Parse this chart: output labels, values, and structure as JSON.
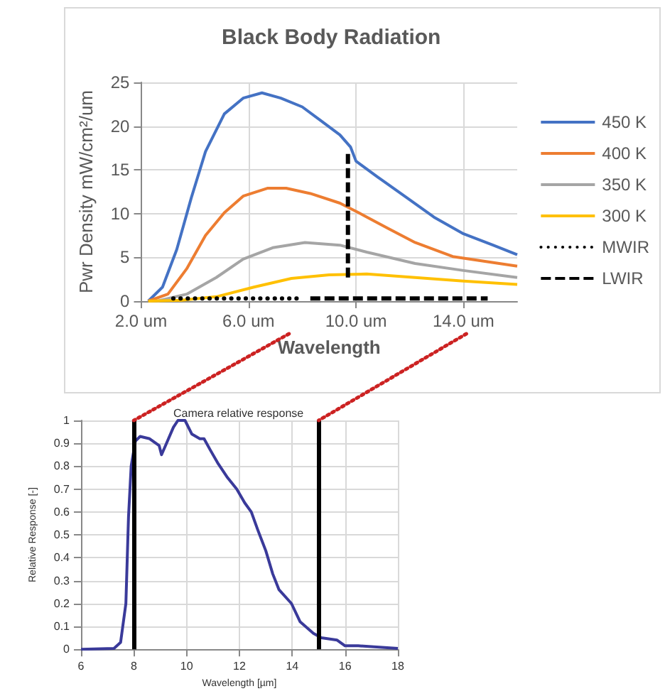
{
  "chart_data": [
    {
      "type": "line",
      "title": "Black Body Radiation",
      "xlabel": "Wavelength",
      "ylabel": "Pwr Density mW/cm²/um",
      "xlim": [
        2,
        16
      ],
      "xticks": [
        {
          "value": 2,
          "label": "2.0 um"
        },
        {
          "value": 6,
          "label": "6.0 um"
        },
        {
          "value": 10,
          "label": "10.0 um"
        },
        {
          "value": 14,
          "label": "14.0 um"
        }
      ],
      "ylim": [
        0,
        25
      ],
      "yticks": [
        0,
        5,
        10,
        15,
        20,
        25
      ],
      "grid": true,
      "legend": "right",
      "marker": "none",
      "series": [
        {
          "name": "450 K",
          "color": "#4472c4",
          "x": [
            2.27,
            2.8,
            3.33,
            3.87,
            4.4,
            5.1,
            5.8,
            6.5,
            7.2,
            8,
            8.7,
            9.4,
            9.8,
            10,
            10.8,
            11.9,
            12.9,
            14,
            15.1,
            16
          ],
          "values": [
            0,
            1.6,
            5.9,
            11.8,
            17.1,
            21.4,
            23.2,
            23.8,
            23.2,
            22.2,
            20.6,
            19,
            17.6,
            16,
            14.2,
            11.8,
            9.6,
            7.7,
            6.4,
            5.3
          ]
        },
        {
          "name": "400 K",
          "color": "#ed7d31",
          "x": [
            2.27,
            3,
            3.7,
            4.4,
            5.1,
            5.8,
            6.7,
            7.4,
            8.3,
            9.4,
            10.1,
            11.2,
            12.2,
            13.6,
            16
          ],
          "values": [
            0,
            0.8,
            3.7,
            7.5,
            10.1,
            12,
            12.9,
            12.9,
            12.3,
            11.2,
            10.1,
            8.3,
            6.7,
            5.1,
            4
          ]
        },
        {
          "name": "350 K",
          "color": "#a5a5a5",
          "x": [
            2.6,
            3.7,
            4.8,
            5.8,
            6.9,
            8.1,
            9.4,
            10.4,
            12.2,
            14,
            16
          ],
          "values": [
            0,
            0.8,
            2.7,
            4.8,
            6.1,
            6.7,
            6.4,
            5.6,
            4.3,
            3.5,
            2.7
          ]
        },
        {
          "name": "300 K",
          "color": "#ffc000",
          "x": [
            2.27,
            3.5,
            4.8,
            6.2,
            7.6,
            9,
            10.4,
            12.2,
            14,
            16
          ],
          "values": [
            0,
            0.1,
            0.5,
            1.6,
            2.6,
            3,
            3.1,
            2.7,
            2.3,
            1.9
          ]
        },
        {
          "name": "MWIR",
          "color": "#000000",
          "line_style": "dotted",
          "x": [
            3.2,
            7.8
          ],
          "values": [
            0.3,
            0.3
          ]
        },
        {
          "name": "LWIR",
          "color": "#000000",
          "line_style": "dashed",
          "x": [
            8.3,
            14.9
          ],
          "values": [
            0.3,
            0.3
          ]
        },
        {
          "color": "#000000",
          "line_style": "dashed",
          "x": [
            9.7,
            9.7
          ],
          "values": [
            2.7,
            17.3
          ]
        }
      ]
    },
    {
      "type": "line",
      "title": "Camera relative response",
      "xlabel": "Wavelength [µm]",
      "ylabel": "Relative Response [-]",
      "xlim": [
        6,
        18
      ],
      "xticks": [
        6,
        8,
        10,
        12,
        14,
        16,
        18
      ],
      "ylim": [
        0,
        1
      ],
      "yticks": [
        0,
        0.1,
        0.2,
        0.3,
        0.4,
        0.5,
        0.6,
        0.7,
        0.8,
        0.9,
        1
      ],
      "grid": true,
      "marker": "none",
      "ref_lines": [
        {
          "axis": "x",
          "value": 8,
          "color": "#000000"
        },
        {
          "axis": "x",
          "value": 15,
          "color": "#000000"
        }
      ],
      "series": [
        {
          "color": "#3a3a9a",
          "x": [
            6,
            7.25,
            7.5,
            7.7,
            7.8,
            7.9,
            8.06,
            8.24,
            8.6,
            8.96,
            9.05,
            9.2,
            9.5,
            9.67,
            9.94,
            10.2,
            10.5,
            10.66,
            10.9,
            11.2,
            11.55,
            11.9,
            12.2,
            12.45,
            12.7,
            13,
            13.26,
            13.5,
            13.97,
            14.3,
            14.8,
            15.1,
            15.7,
            16,
            16.5,
            17.2,
            18
          ],
          "values": [
            0,
            0.004,
            0.03,
            0.2,
            0.58,
            0.8,
            0.91,
            0.93,
            0.92,
            0.89,
            0.85,
            0.89,
            0.97,
            1,
            1,
            0.94,
            0.92,
            0.92,
            0.87,
            0.81,
            0.75,
            0.7,
            0.64,
            0.6,
            0.52,
            0.43,
            0.33,
            0.26,
            0.2,
            0.12,
            0.07,
            0.05,
            0.04,
            0.015,
            0.015,
            0.01,
            0.004
          ]
        }
      ]
    }
  ]
}
